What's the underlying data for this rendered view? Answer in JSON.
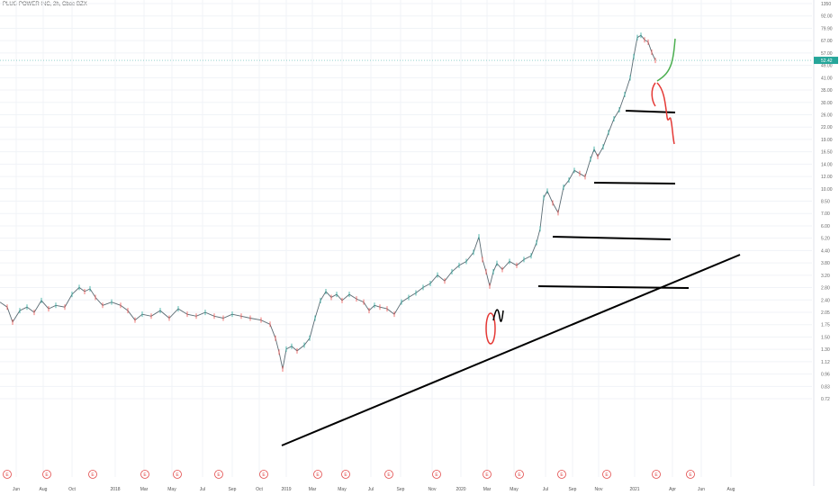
{
  "chart_data": {
    "type": "line",
    "title": "PLUG POWER INC, 2h, Cboe BZX",
    "price_scale": "log",
    "y_ticks": [
      "1350",
      "92.00",
      "79.90",
      "67.00",
      "57.00",
      "49.00",
      "41.00",
      "35.00",
      "30.00",
      "26.00",
      "22.00",
      "19.00",
      "16.50",
      "14.00",
      "12.00",
      "10.00",
      "8.50",
      "7.00",
      "6.00",
      "5.20",
      "4.40",
      "3.80",
      "3.20",
      "2.80",
      "2.40",
      "2.05",
      "1.75",
      "1.50",
      "1.30",
      "1.12",
      "0.96",
      "0.83",
      "0.72"
    ],
    "x_ticks": [
      "Jun",
      "Aug",
      "Oct",
      "2018",
      "Mar",
      "May",
      "Jul",
      "Sep",
      "Oct",
      "2019",
      "Mar",
      "May",
      "Jul",
      "Sep",
      "Nov",
      "2020",
      "Mar",
      "May",
      "Jul",
      "Sep",
      "Nov",
      "2021",
      "Apr",
      "Jun",
      "Aug"
    ],
    "current_price": "52.42",
    "earnings_marker_label": "E",
    "grid": true,
    "colors": {
      "up": "#26a69a",
      "down": "#ef5350",
      "price_badge": "#26a69a",
      "line": "#000000",
      "bull_path": "#4caf50",
      "bear_path": "#e53935",
      "earnings": "#e24b4b"
    }
  }
}
